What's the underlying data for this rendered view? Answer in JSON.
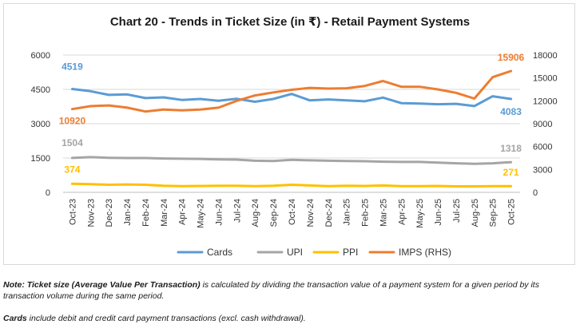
{
  "chart_data": {
    "type": "line",
    "title": "Chart 20 - Trends in Ticket Size (in ₹) - Retail Payment Systems",
    "categories": [
      "Oct-23",
      "Nov-23",
      "Dec-23",
      "Jan-24",
      "Feb-24",
      "Mar-24",
      "Apr-24",
      "May-24",
      "Jun-24",
      "Jul-24",
      "Aug-24",
      "Sep-24",
      "Oct-24",
      "Nov-24",
      "Dec-24",
      "Jan-25",
      "Feb-25",
      "Mar-25",
      "Apr-25",
      "May-25",
      "Jun-25",
      "Jul-25",
      "Aug-25",
      "Sep-25",
      "Oct-25"
    ],
    "y_left": {
      "min": 0,
      "max": 6000,
      "ticks": [
        "0",
        "1500",
        "3000",
        "4500",
        "6000"
      ]
    },
    "y_right": {
      "min": 0,
      "max": 18000,
      "ticks": [
        "0",
        "3000",
        "6000",
        "9000",
        "12000",
        "15000",
        "18000"
      ]
    },
    "series": [
      {
        "name": "Cards",
        "axis": "left",
        "color": "#5b9bd5",
        "values": [
          4519,
          4420,
          4260,
          4280,
          4120,
          4150,
          4040,
          4080,
          4000,
          4090,
          3960,
          4080,
          4300,
          4020,
          4060,
          4020,
          3980,
          4140,
          3900,
          3880,
          3850,
          3870,
          3770,
          4200,
          4083
        ]
      },
      {
        "name": "UPI",
        "axis": "left",
        "color": "#a5a5a5",
        "values": [
          1504,
          1540,
          1510,
          1500,
          1500,
          1480,
          1470,
          1460,
          1440,
          1430,
          1380,
          1370,
          1420,
          1400,
          1380,
          1370,
          1360,
          1340,
          1330,
          1330,
          1300,
          1270,
          1250,
          1270,
          1318
        ]
      },
      {
        "name": "PPI",
        "axis": "left",
        "color": "#ffc000",
        "values": [
          374,
          360,
          330,
          345,
          330,
          290,
          270,
          280,
          290,
          290,
          270,
          290,
          330,
          300,
          270,
          290,
          280,
          300,
          270,
          270,
          280,
          260,
          260,
          270,
          271
        ]
      },
      {
        "name": "IMPS (RHS)",
        "axis": "right",
        "color": "#ed7d31",
        "values": [
          10920,
          11300,
          11400,
          11100,
          10600,
          10850,
          10750,
          10850,
          11100,
          12000,
          12700,
          13100,
          13450,
          13700,
          13600,
          13650,
          13950,
          14600,
          13850,
          13850,
          13500,
          13050,
          12300,
          15100,
          15906
        ]
      }
    ],
    "data_labels": [
      {
        "series": "Cards",
        "point": "first",
        "text": "4519"
      },
      {
        "series": "Cards",
        "point": "last",
        "text": "4083"
      },
      {
        "series": "UPI",
        "point": "first",
        "text": "1504"
      },
      {
        "series": "UPI",
        "point": "last",
        "text": "1318"
      },
      {
        "series": "PPI",
        "point": "first",
        "text": "374"
      },
      {
        "series": "PPI",
        "point": "last",
        "text": "271"
      },
      {
        "series": "IMPS (RHS)",
        "point": "first",
        "text": "10920"
      },
      {
        "series": "IMPS (RHS)",
        "point": "last",
        "text": "15906"
      }
    ],
    "grid": true,
    "legend": "bottom"
  },
  "notes": {
    "note1_label": "Note: Ticket size (Average Value Per Transaction)",
    "note1_text": " is calculated by dividing the transaction value of a payment system for a given period by its transaction volume during the same period.",
    "note2_label": "Cards",
    "note2_text": " include debit and credit card payment transactions (excl. cash withdrawal)."
  }
}
